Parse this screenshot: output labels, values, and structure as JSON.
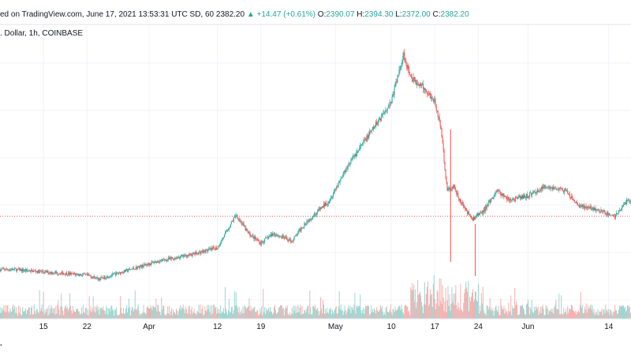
{
  "header": {
    "published": "ed on TradingView.com, June 17, 2021 13:53:31 UTC",
    "symbol_info": "SD, 60",
    "close": "2382.20",
    "change": "+14.47 (+0.61%)",
    "o_label": "O:",
    "o_value": "2390.07",
    "h_label": "H:",
    "h_value": "2394.30",
    "l_label": "L:",
    "l_value": "2372.00",
    "c_label": "C:",
    "c_value": "2382.20",
    "subtitle": ". Dollar, 1h, COINBASE"
  },
  "footer": {
    "mark": "•"
  },
  "colors": {
    "up": "#26a69a",
    "down": "#ef5350",
    "grid": "#f0f3fa",
    "axis_text": "#131722",
    "price_line": "#ef5350"
  },
  "chart_data": {
    "type": "candlestick",
    "interval": "1h",
    "x_tick_labels": [
      "15",
      "22",
      "Apr",
      "12",
      "19",
      "May",
      "10",
      "17",
      "24",
      "Jun",
      "14"
    ],
    "trend": {
      "dates": [
        "2021-03-10",
        "2021-03-14",
        "2021-03-18",
        "2021-03-22",
        "2021-03-24",
        "2021-03-28",
        "2021-04-02",
        "2021-04-08",
        "2021-04-12",
        "2021-04-15",
        "2021-04-17",
        "2021-04-19",
        "2021-04-21",
        "2021-04-24",
        "2021-04-26",
        "2021-04-30",
        "2021-05-03",
        "2021-05-07",
        "2021-05-10",
        "2021-05-12",
        "2021-05-13",
        "2021-05-15",
        "2021-05-17",
        "2021-05-18",
        "2021-05-19",
        "2021-05-20",
        "2021-05-21",
        "2021-05-23",
        "2021-05-25",
        "2021-05-27",
        "2021-05-29",
        "2021-06-01",
        "2021-06-04",
        "2021-06-07",
        "2021-06-09",
        "2021-06-12",
        "2021-06-15",
        "2021-06-17"
      ],
      "price": [
        1820,
        1800,
        1780,
        1760,
        1720,
        1800,
        1900,
        1980,
        2050,
        2400,
        2200,
        2100,
        2200,
        2120,
        2300,
        2550,
        2920,
        3300,
        3600,
        4100,
        3850,
        3750,
        3600,
        3300,
        2650,
        2700,
        2550,
        2350,
        2450,
        2650,
        2550,
        2600,
        2700,
        2650,
        2500,
        2450,
        2380,
        2550
      ]
    },
    "last_price": 2382.2,
    "volume": "per-candle volume histogram along the bottom, colored by candle direction"
  }
}
